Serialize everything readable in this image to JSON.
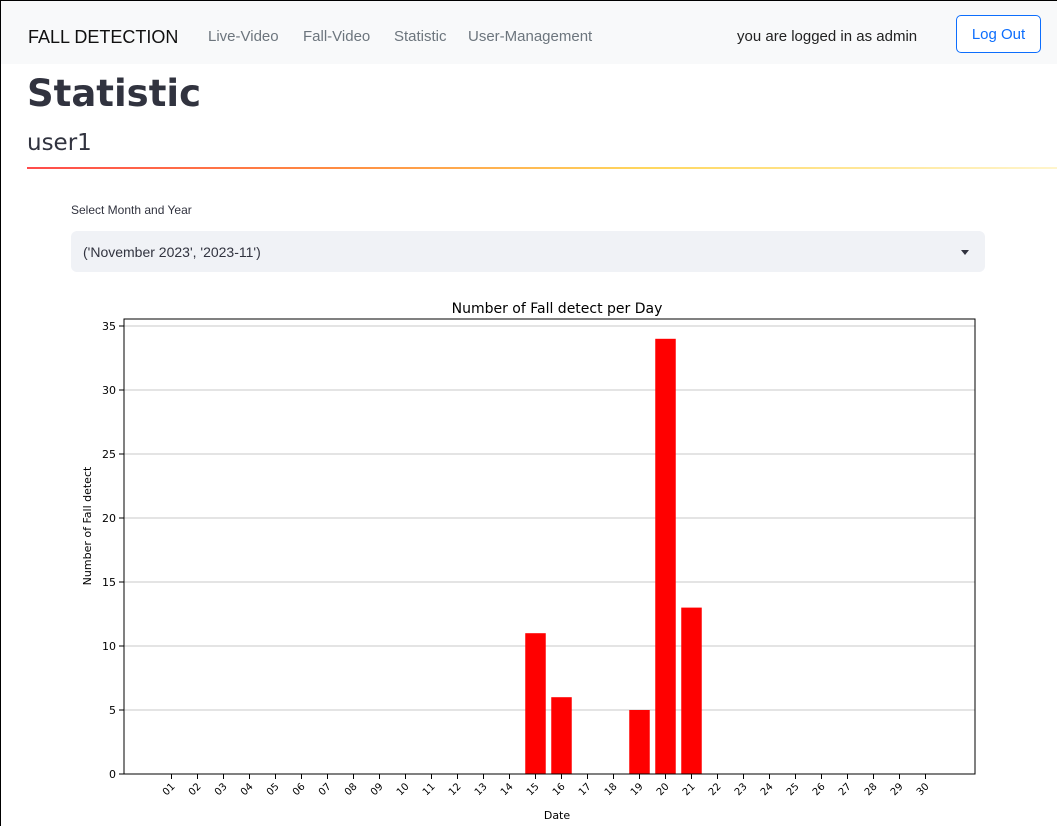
{
  "navbar": {
    "brand": "FALL DETECTION",
    "links": [
      "Live-Video",
      "Fall-Video",
      "Statistic",
      "User-Management"
    ],
    "logged_in_text": "you are logged in as admin",
    "logout_label": "Log Out"
  },
  "page": {
    "title": "Statistic",
    "subtitle": "user1"
  },
  "select": {
    "label": "Select Month and Year",
    "value": "('November 2023', '2023-11')",
    "icon": "chevron-down-icon"
  },
  "colors": {
    "bar": "#ff0000",
    "brand_button": "#0d6efd"
  },
  "chart_data": {
    "type": "bar",
    "title": "Number of Fall detect per Day",
    "xlabel": "Date",
    "ylabel": "Number of Fall detect",
    "categories": [
      "01",
      "02",
      "03",
      "04",
      "05",
      "06",
      "07",
      "08",
      "09",
      "10",
      "11",
      "12",
      "13",
      "14",
      "15",
      "16",
      "17",
      "18",
      "19",
      "20",
      "21",
      "22",
      "23",
      "24",
      "25",
      "26",
      "27",
      "28",
      "29",
      "30"
    ],
    "values": [
      0,
      0,
      0,
      0,
      0,
      0,
      0,
      0,
      0,
      0,
      0,
      0,
      0,
      0,
      11,
      6,
      0,
      0,
      5,
      34,
      13,
      0,
      0,
      0,
      0,
      0,
      0,
      0,
      0,
      0
    ],
    "ylim": [
      0,
      35
    ],
    "yticks": [
      0,
      5,
      10,
      15,
      20,
      25,
      30,
      35
    ],
    "grid": "y",
    "legend": "none"
  }
}
